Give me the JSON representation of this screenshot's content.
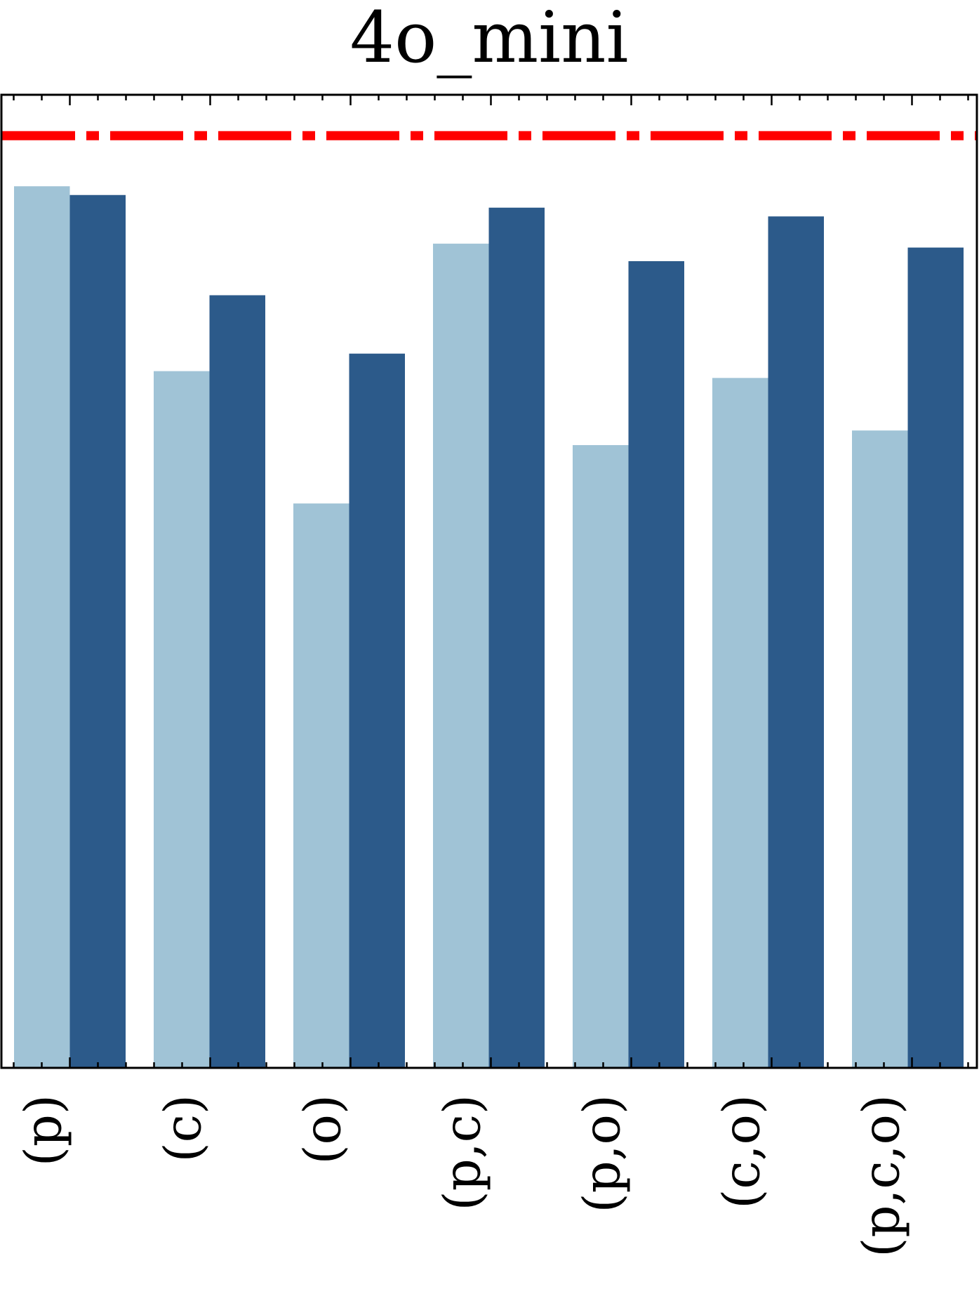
{
  "chart_data": {
    "type": "bar",
    "title": "4o_mini",
    "xlabel": "",
    "ylabel": "",
    "categories": [
      "(p)",
      "(c)",
      "(o)",
      "(p,c)",
      "(p,o)",
      "(c,o)",
      "(p,c,o)"
    ],
    "series": [
      {
        "values": [
          0.906,
          0.716,
          0.58,
          0.847,
          0.64,
          0.709,
          0.655
        ]
      },
      {
        "values": [
          0.897,
          0.794,
          0.734,
          0.884,
          0.829,
          0.875,
          0.843
        ]
      }
    ],
    "reference_line": {
      "value": 0.958,
      "style": "dash-dot"
    },
    "ylim": [
      0,
      1
    ],
    "grid": false,
    "legend": "none",
    "colors": {
      "series": [
        "#a0c3d6",
        "#2c5a8a"
      ],
      "reference_line": "#ff0000",
      "axes": "#000000"
    }
  }
}
